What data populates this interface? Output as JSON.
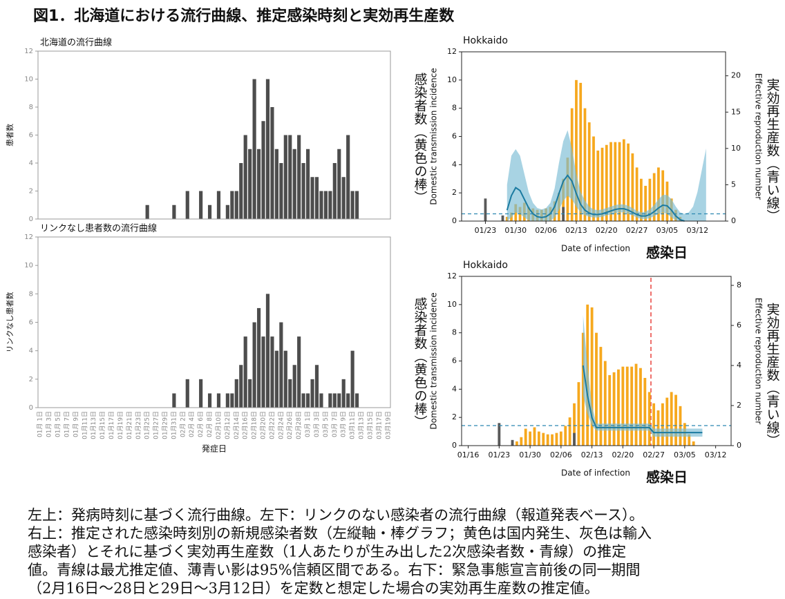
{
  "figure_title": "図1．北海道における流行曲線、推定感染時刻と実効再生産数",
  "caption": [
    "左上：発病時刻に基づく流行曲線。左下：リンクのない感染者の流行曲線（報道発表ベース）。",
    "右上：推定された感染時刻別の新規感染者数（左縦軸・棒グラフ；黄色は国内発生、灰色は輸入",
    "感染者）とそれに基づく実効再生産数（1人あたりが生み出した2次感染者数・青線）の推定",
    "値。青線は最尤推定値、薄青い影は95%信頼区間である。右下：緊急事態宣言前後の同一期間",
    "（2月16日〜28日と29日〜3月12日）を定数と想定した場合の実効再生産数の推定値。"
  ],
  "chart_data": [
    {
      "type": "bar",
      "title": "北海道の流行曲線",
      "y_label": "患者数",
      "color": "#4d4d4d",
      "ylim": [
        0,
        12
      ],
      "yticks": [
        0,
        2,
        4,
        6,
        8,
        10,
        12
      ],
      "values": [
        0,
        0,
        0,
        0,
        0,
        0,
        0,
        0,
        0,
        0,
        0,
        0,
        0,
        0,
        0,
        0,
        0,
        0,
        0,
        0,
        0,
        0,
        0,
        0,
        1,
        0,
        0,
        0,
        0,
        0,
        1,
        0,
        0,
        2,
        0,
        0,
        2,
        0,
        1,
        0,
        2,
        0,
        1,
        2,
        2,
        4,
        6,
        5,
        10,
        5,
        7,
        10,
        8,
        5,
        4,
        6,
        6,
        5,
        6,
        4,
        5,
        3,
        3,
        2,
        2,
        2,
        4,
        5,
        3,
        6,
        2,
        2,
        0,
        0,
        0,
        0,
        0,
        0,
        0
      ]
    },
    {
      "type": "bar",
      "title": "リンクなし患者数の流行曲線",
      "y_label": "リンクなし患者数",
      "x_label": "発症日",
      "color": "#4d4d4d",
      "ylim": [
        0,
        12
      ],
      "yticks": [
        0,
        2,
        4,
        6,
        8,
        10,
        12
      ],
      "categories": [
        "01月 1日",
        null,
        "01月 3日",
        null,
        "01月 5日",
        null,
        "01月 7日",
        null,
        "01月 9日",
        null,
        "01月11日",
        null,
        "01月13日",
        null,
        "01月15日",
        null,
        "01月17日",
        null,
        "01月19日",
        null,
        "01月21日",
        null,
        "01月23日",
        null,
        "01月25日",
        null,
        "01月27日",
        null,
        "01月29日",
        null,
        "01月31日",
        null,
        "02月 2日",
        null,
        "02月 4日",
        null,
        "02月 6日",
        null,
        "02月 8日",
        null,
        "02月10日",
        null,
        "02月12日",
        null,
        "02月14日",
        null,
        "02月16日",
        null,
        "02月18日",
        null,
        "02月20日",
        null,
        "02月22日",
        null,
        "02月24日",
        null,
        "02月26日",
        null,
        "02月28日",
        null,
        "03月 1日",
        null,
        "03月 3日",
        null,
        "03月 5日",
        null,
        "03月 7日",
        null,
        "03月 9日",
        null,
        "03月11日",
        null,
        "03月13日",
        null,
        "03月15日",
        null,
        "03月17日",
        null,
        "03月19日"
      ],
      "values": [
        0,
        0,
        0,
        0,
        0,
        0,
        0,
        0,
        0,
        0,
        0,
        0,
        0,
        0,
        0,
        0,
        0,
        0,
        0,
        0,
        0,
        0,
        0,
        0,
        0,
        0,
        0,
        0,
        0,
        0,
        1,
        0,
        0,
        2,
        0,
        0,
        2,
        0,
        1,
        0,
        1,
        0,
        1,
        1,
        2,
        3,
        5,
        2,
        6,
        7,
        5,
        8,
        5,
        4,
        6,
        4,
        2,
        3,
        5,
        1,
        1,
        2,
        3,
        1,
        0,
        1,
        1,
        1,
        2,
        1,
        4,
        1,
        0,
        0,
        0,
        0,
        0,
        0,
        0
      ]
    },
    {
      "type": "combo",
      "title": "Hokkaido",
      "y_label": "Domestic transmission incidence",
      "y2_label": "Effective reproduction number",
      "x_label": "Date of infection",
      "y_label_ja": "感染者数（黄色の棒）",
      "y2_label_ja": "実効再生産数（青い線）",
      "x_label_ja": "感染日",
      "ylim": [
        0,
        12
      ],
      "yticks": [
        0,
        2,
        4,
        6,
        8,
        10,
        12
      ],
      "y2lim": [
        0,
        23.3
      ],
      "y2ticks": [
        0,
        5,
        10,
        15,
        20
      ],
      "categories": [
        null,
        null,
        null,
        null,
        null,
        "01/23",
        null,
        null,
        null,
        null,
        null,
        null,
        "01/30",
        null,
        null,
        null,
        null,
        null,
        null,
        "02/06",
        null,
        null,
        null,
        null,
        null,
        null,
        "02/13",
        null,
        null,
        null,
        null,
        null,
        null,
        "02/20",
        null,
        null,
        null,
        null,
        null,
        null,
        "02/27",
        null,
        null,
        null,
        null,
        null,
        null,
        "03/05",
        null,
        null,
        null,
        null,
        null,
        null,
        "03/12",
        null,
        null,
        null,
        null,
        null,
        null
      ],
      "series": [
        {
          "kind": "bar",
          "color": "#f6a81e",
          "values": [
            null,
            null,
            null,
            null,
            null,
            null,
            null,
            null,
            null,
            null,
            0.3,
            0.6,
            1.2,
            1.0,
            1.3,
            1.0,
            0.9,
            0.8,
            0.8,
            0.9,
            1.0,
            1.4,
            2.0,
            3.0,
            4.5,
            8.0,
            10.0,
            9.8,
            8.0,
            7.0,
            6.0,
            5.0,
            5.2,
            5.4,
            5.6,
            5.6,
            5.6,
            5.8,
            5.5,
            4.8,
            3.8,
            3.0,
            2.5,
            3.0,
            3.4,
            3.8,
            3.6,
            2.8,
            1.6,
            0.8,
            0.3,
            null,
            null,
            null,
            null,
            null,
            null,
            null,
            null,
            null,
            null
          ]
        },
        {
          "kind": "bar",
          "color": "#595959",
          "values": [
            null,
            null,
            null,
            null,
            null,
            1.6,
            null,
            null,
            null,
            0.4,
            null,
            null,
            null,
            null,
            null,
            null,
            null,
            null,
            null,
            null,
            null,
            null,
            null,
            1.0,
            null,
            null,
            null,
            null,
            null,
            null,
            null,
            null,
            null,
            null,
            null,
            null,
            null,
            null,
            null,
            null,
            null,
            null,
            null,
            null,
            null,
            null,
            null,
            null,
            null,
            null,
            null,
            null,
            null,
            null,
            null,
            null,
            null,
            null,
            null,
            null,
            null
          ]
        },
        {
          "kind": "band",
          "axis": "y2",
          "color": "#79bcd4",
          "upper": [
            null,
            null,
            null,
            null,
            null,
            null,
            null,
            null,
            null,
            null,
            5,
            9,
            9.9,
            9.0,
            6.5,
            4.0,
            2.5,
            1.8,
            1.6,
            1.8,
            2.5,
            4.5,
            8.0,
            11.0,
            12.5,
            10.0,
            6.5,
            4.0,
            2.8,
            2.0,
            1.6,
            1.5,
            1.6,
            1.8,
            2.0,
            2.2,
            2.3,
            2.3,
            2.1,
            1.8,
            1.4,
            1.2,
            1.3,
            1.6,
            2.2,
            3.0,
            3.6,
            3.6,
            3.0,
            2.0,
            1.2,
            1.0,
            1.2,
            2.0,
            4.0,
            7.0,
            10.0,
            null,
            null,
            null,
            null
          ],
          "lower": [
            null,
            null,
            null,
            null,
            null,
            null,
            null,
            null,
            null,
            null,
            0,
            0.5,
            1.2,
            1.0,
            0.5,
            0.1,
            0,
            0,
            0,
            0,
            0,
            0.5,
            1.5,
            2.8,
            3.5,
            3.0,
            2.0,
            1.2,
            0.8,
            0.6,
            0.5,
            0.5,
            0.6,
            0.8,
            0.9,
            1.1,
            1.2,
            1.2,
            1.0,
            0.8,
            0.5,
            0.3,
            0.3,
            0.4,
            0.7,
            1.0,
            1.2,
            1.0,
            0.5,
            0.1,
            0,
            0,
            0,
            0,
            0,
            0,
            0,
            null,
            null,
            null,
            null
          ]
        },
        {
          "kind": "line",
          "axis": "y2",
          "color": "#1a7aa0",
          "values": [
            null,
            null,
            null,
            null,
            null,
            null,
            null,
            null,
            null,
            null,
            1.5,
            3.5,
            4.6,
            4.2,
            3.0,
            1.8,
            1.0,
            0.6,
            0.5,
            0.6,
            1.0,
            2.0,
            3.8,
            5.5,
            6.3,
            5.5,
            3.8,
            2.3,
            1.5,
            1.1,
            0.9,
            0.9,
            1.0,
            1.2,
            1.4,
            1.6,
            1.7,
            1.7,
            1.5,
            1.2,
            0.9,
            0.7,
            0.7,
            0.9,
            1.3,
            1.8,
            2.2,
            2.1,
            1.5,
            0.7,
            0.2,
            0,
            null,
            null,
            null,
            null,
            null,
            null,
            null,
            null,
            null
          ]
        }
      ],
      "hline": {
        "value": 1,
        "axis": "y2",
        "color": "#2b86b0"
      }
    },
    {
      "type": "combo",
      "title": "Hokkaido",
      "y_label": "Domestic transmission incidence",
      "y2_label": "Effective reproduction number",
      "x_label": "Date of infection",
      "y_label_ja": "感染者数（黄色の棒）",
      "y2_label_ja": "実効再生産数（青い線）",
      "x_label_ja": "感染日",
      "ylim": [
        0,
        12
      ],
      "yticks": [
        0,
        2,
        4,
        6,
        8,
        10,
        12
      ],
      "y2lim": [
        0,
        8.45
      ],
      "y2ticks": [
        0,
        2,
        4,
        6,
        8
      ],
      "categories": [
        null,
        "01/16",
        null,
        null,
        null,
        null,
        null,
        null,
        "01/23",
        null,
        null,
        null,
        null,
        null,
        null,
        "01/30",
        null,
        null,
        null,
        null,
        null,
        null,
        "02/06",
        null,
        null,
        null,
        null,
        null,
        null,
        "02/13",
        null,
        null,
        null,
        null,
        null,
        null,
        "02/20",
        null,
        null,
        null,
        null,
        null,
        null,
        "02/27",
        null,
        null,
        null,
        null,
        null,
        null,
        "03/05",
        null,
        null,
        null,
        null,
        null,
        null,
        "03/12",
        null,
        null,
        null
      ],
      "series": [
        {
          "kind": "bar",
          "color": "#f6a81e",
          "values": [
            null,
            null,
            null,
            null,
            null,
            null,
            null,
            null,
            null,
            null,
            null,
            null,
            0.3,
            0.6,
            1.2,
            1.0,
            1.3,
            1.0,
            0.9,
            0.8,
            0.8,
            0.9,
            1.0,
            1.4,
            2.0,
            3.0,
            4.5,
            8.0,
            10.0,
            9.8,
            8.0,
            7.0,
            6.0,
            5.0,
            5.2,
            5.4,
            5.6,
            5.6,
            5.6,
            5.8,
            5.5,
            4.8,
            3.8,
            3.0,
            2.5,
            3.0,
            3.4,
            3.8,
            3.6,
            2.8,
            1.6,
            0.8,
            0.3,
            null,
            null,
            null,
            null,
            null,
            null,
            null,
            null
          ]
        },
        {
          "kind": "bar",
          "color": "#595959",
          "values": [
            null,
            null,
            null,
            null,
            null,
            null,
            null,
            null,
            1.6,
            null,
            null,
            0.4,
            null,
            null,
            null,
            null,
            null,
            null,
            null,
            null,
            null,
            null,
            null,
            null,
            null,
            0.9,
            null,
            null,
            null,
            null,
            null,
            null,
            null,
            null,
            null,
            null,
            null,
            null,
            null,
            null,
            null,
            null,
            null,
            null,
            null,
            null,
            null,
            null,
            null,
            null,
            null,
            null,
            null,
            null,
            null,
            null,
            null,
            null,
            null,
            null,
            null
          ]
        },
        {
          "kind": "band",
          "axis": "y2",
          "color": "#79bcd4",
          "upper": [
            null,
            null,
            null,
            null,
            null,
            null,
            null,
            null,
            null,
            null,
            null,
            null,
            null,
            null,
            null,
            null,
            null,
            null,
            null,
            null,
            null,
            null,
            null,
            null,
            null,
            null,
            null,
            6.5,
            4.0,
            2.0,
            1.1,
            1.1,
            1.1,
            1.1,
            1.1,
            1.1,
            1.1,
            1.1,
            1.1,
            1.1,
            1.1,
            1.1,
            1.1,
            0.85,
            0.85,
            0.85,
            0.85,
            0.85,
            0.85,
            0.85,
            0.85,
            0.85,
            0.85,
            0.85,
            0.85,
            null,
            null,
            null,
            null,
            null,
            null
          ],
          "lower": [
            null,
            null,
            null,
            null,
            null,
            null,
            null,
            null,
            null,
            null,
            null,
            null,
            null,
            null,
            null,
            null,
            null,
            null,
            null,
            null,
            null,
            null,
            null,
            null,
            null,
            null,
            null,
            2.5,
            1.6,
            1.0,
            0.75,
            0.75,
            0.75,
            0.75,
            0.75,
            0.75,
            0.75,
            0.75,
            0.75,
            0.75,
            0.75,
            0.75,
            0.75,
            0.45,
            0.45,
            0.45,
            0.45,
            0.45,
            0.45,
            0.45,
            0.45,
            0.45,
            0.45,
            0.45,
            0.45,
            null,
            null,
            null,
            null,
            null,
            null
          ]
        },
        {
          "kind": "line",
          "axis": "y2",
          "color": "#1a7aa0",
          "values": [
            null,
            null,
            null,
            null,
            null,
            null,
            null,
            null,
            null,
            null,
            null,
            null,
            null,
            null,
            null,
            null,
            null,
            null,
            null,
            null,
            null,
            null,
            null,
            null,
            null,
            null,
            null,
            4.0,
            2.5,
            1.4,
            0.9,
            0.9,
            0.9,
            0.9,
            0.9,
            0.9,
            0.9,
            0.9,
            0.9,
            0.9,
            0.9,
            0.9,
            0.9,
            0.65,
            0.65,
            0.65,
            0.65,
            0.65,
            0.65,
            0.65,
            0.65,
            0.65,
            0.65,
            0.65,
            0.65,
            null,
            null,
            null,
            null,
            null,
            null
          ]
        }
      ],
      "hline": {
        "value": 1,
        "axis": "y2",
        "color": "#2b86b0"
      }
    }
  ]
}
